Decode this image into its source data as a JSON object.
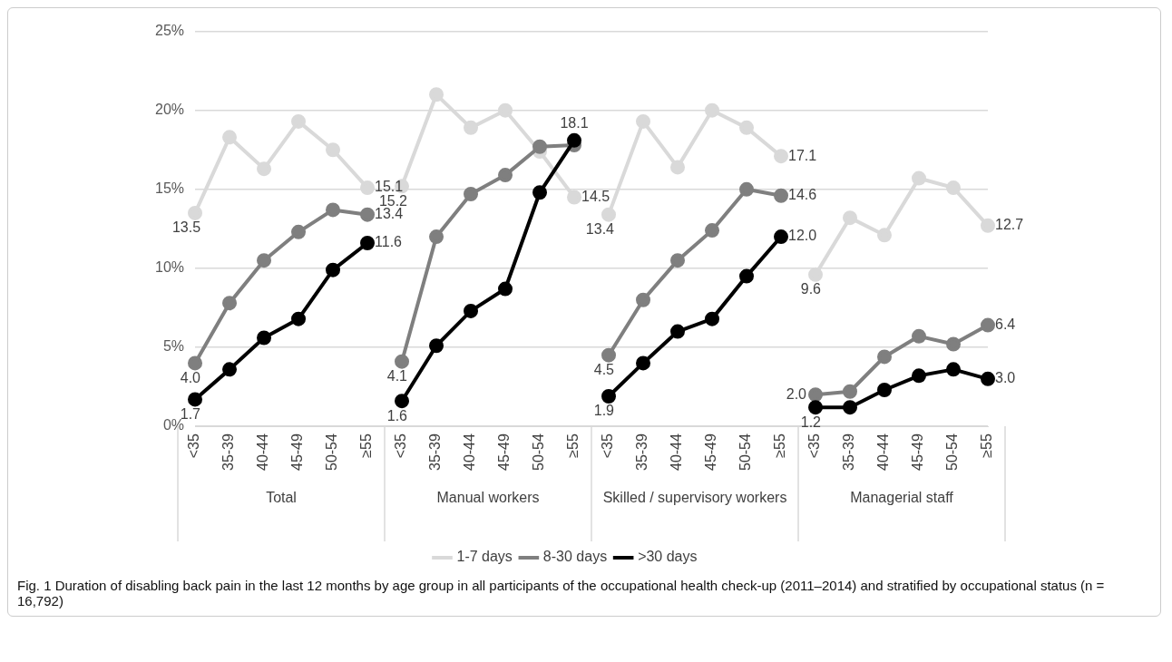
{
  "chart_data": {
    "type": "line",
    "title": "Fig. 1 Duration of disabling back pain in the last 12 months by age group in all participants of the occupational health check-up (2011–2014) and stratified by occupational status (n = 16,792)",
    "categories": [
      "<35",
      "35-39",
      "40-44",
      "45-49",
      "50-54",
      "≥55",
      "<35",
      "35-39",
      "40-44",
      "45-49",
      "50-54",
      "≥55",
      "<35",
      "35-39",
      "40-44",
      "45-49",
      "50-54",
      "≥55",
      "<35",
      "35-39",
      "40-44",
      "45-49",
      "50-54",
      "≥55"
    ],
    "series": [
      {
        "name": "1-7 days",
        "color": "#d9d9d9",
        "values": [
          13.5,
          18.3,
          16.3,
          19.3,
          17.5,
          15.1,
          15.2,
          21.0,
          18.9,
          20.0,
          17.4,
          14.5,
          13.4,
          19.3,
          16.4,
          20.0,
          18.9,
          17.1,
          9.6,
          13.2,
          12.1,
          15.7,
          15.1,
          12.7
        ],
        "value_labels": [
          "13.5",
          null,
          null,
          null,
          null,
          "15.1",
          "15.2",
          null,
          null,
          null,
          null,
          "14.5",
          "13.4",
          null,
          null,
          null,
          null,
          "17.1",
          "9.6",
          null,
          null,
          null,
          null,
          "12.7"
        ]
      },
      {
        "name": "8-30 days",
        "color": "#7f7f7f",
        "values": [
          4.0,
          7.8,
          10.5,
          12.3,
          13.7,
          13.4,
          4.1,
          12.0,
          14.7,
          15.9,
          17.7,
          17.8,
          4.5,
          8.0,
          10.5,
          12.4,
          15.0,
          14.6,
          2.0,
          2.2,
          4.4,
          5.7,
          5.2,
          6.4
        ],
        "value_labels": [
          "4.0",
          null,
          null,
          null,
          null,
          "13.4",
          "4.1",
          null,
          null,
          null,
          null,
          null,
          "4.5",
          null,
          null,
          null,
          null,
          "14.6",
          "2.0",
          null,
          null,
          null,
          null,
          "6.4"
        ]
      },
      {
        "name": ">30 days",
        "color": "#000000",
        "values": [
          1.7,
          3.6,
          5.6,
          6.8,
          9.9,
          11.6,
          1.6,
          5.1,
          7.3,
          8.7,
          14.8,
          18.1,
          1.9,
          4.0,
          6.0,
          6.8,
          9.5,
          12.0,
          1.2,
          1.2,
          2.3,
          3.2,
          3.6,
          3.0
        ],
        "value_labels": [
          "1.7",
          null,
          null,
          null,
          null,
          "11.6",
          "1.6",
          null,
          null,
          null,
          null,
          "18.1",
          "1.9",
          null,
          null,
          null,
          null,
          "12.0",
          "1.2",
          null,
          null,
          null,
          null,
          "3.0"
        ]
      }
    ],
    "annotations": [
      "Total",
      "Manual workers",
      "Skilled / supervisory workers",
      "Managerial staff"
    ],
    "ylim": [
      0,
      25
    ],
    "yticks": [
      {
        "value": 0,
        "label": "0%"
      },
      {
        "value": 5,
        "label": "5%"
      },
      {
        "value": 10,
        "label": "10%"
      },
      {
        "value": 15,
        "label": "15%"
      },
      {
        "value": 20,
        "label": "20%"
      },
      {
        "value": 25,
        "label": "25%"
      }
    ],
    "grid": "y",
    "legend": "bottom",
    "marker": "circle",
    "line_style": "solid"
  }
}
